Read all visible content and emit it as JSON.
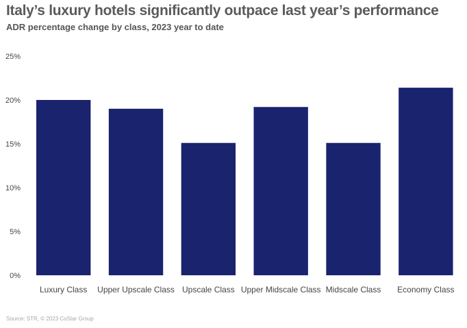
{
  "chart_data": {
    "type": "bar",
    "title": "Italy’s luxury hotels significantly outpace last year’s performance",
    "subtitle": "ADR percentage change by class, 2023 year to date",
    "categories": [
      "Luxury Class",
      "Upper Upscale Class",
      "Upscale Class",
      "Upper Midscale Class",
      "Midscale Class",
      "Economy Class"
    ],
    "values": [
      20.0,
      19.0,
      15.1,
      19.2,
      15.1,
      21.4
    ],
    "y_ticks": [
      "0%",
      "5%",
      "10%",
      "15%",
      "20%",
      "25%"
    ],
    "ylim": [
      0,
      25
    ],
    "xlabel": "",
    "ylabel": "",
    "grid": false,
    "legend": "none",
    "bar_color": "#1a236e",
    "source": "Source: STR, © 2023 CoStar Group"
  }
}
